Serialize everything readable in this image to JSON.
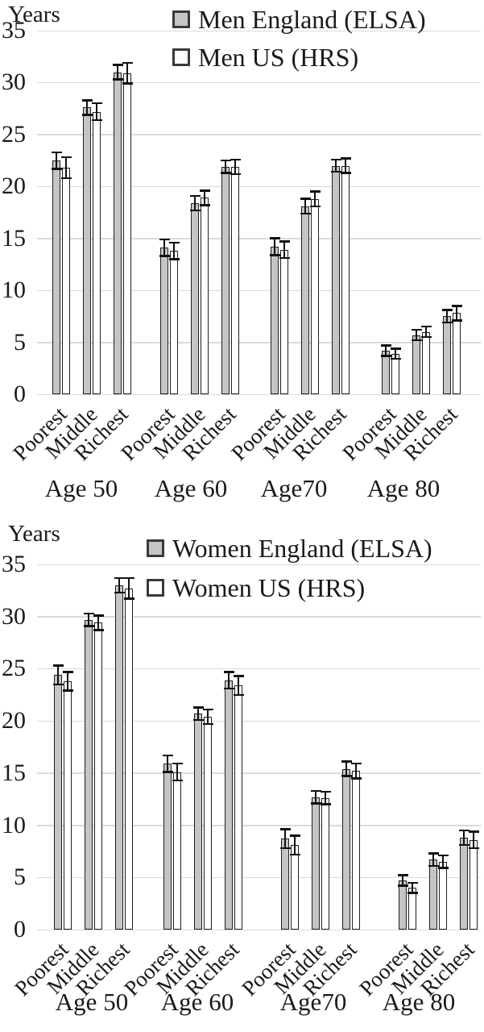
{
  "page": {
    "background": "#ffffff",
    "text_color": "#1a1a1a",
    "gridline_color": "#dadada",
    "bar_border_color": "#1f1f1f",
    "error_bar_color": "#111111"
  },
  "chart_data": [
    {
      "type": "bar",
      "title": "",
      "ylabel": "Years",
      "ylim": [
        0,
        35
      ],
      "yticks": [
        35,
        30,
        25,
        20,
        15,
        10,
        5,
        0
      ],
      "grid": true,
      "legend_position": "top-inside",
      "groups": [
        "Age 50",
        "Age 60",
        "Age70",
        "Age 80"
      ],
      "categories": [
        "Poorest",
        "Middle",
        "Richest"
      ],
      "error_bars": true,
      "series": [
        {
          "name": "Men England (ELSA)",
          "fill": "#c5c5c5",
          "values": [
            [
              22.5,
              27.6,
              31.0
            ],
            [
              14.1,
              18.4,
              21.9
            ],
            [
              14.2,
              18.1,
              22.0
            ],
            [
              4.2,
              5.7,
              7.5
            ]
          ],
          "errors": [
            [
              0.8,
              0.7,
              0.7
            ],
            [
              0.8,
              0.7,
              0.6
            ],
            [
              0.8,
              0.7,
              0.6
            ],
            [
              0.5,
              0.5,
              0.6
            ]
          ]
        },
        {
          "name": "Men US (HRS)",
          "fill": "#ffffff",
          "values": [
            [
              21.8,
              27.2,
              30.9
            ],
            [
              13.8,
              18.9,
              21.9
            ],
            [
              13.9,
              18.8,
              22.0
            ],
            [
              3.9,
              6.0,
              7.8
            ]
          ],
          "errors": [
            [
              1.0,
              0.8,
              1.0
            ],
            [
              0.8,
              0.7,
              0.7
            ],
            [
              0.8,
              0.7,
              0.7
            ],
            [
              0.5,
              0.5,
              0.7
            ]
          ]
        }
      ]
    },
    {
      "type": "bar",
      "title": "",
      "ylabel": "Years",
      "ylim": [
        0,
        35
      ],
      "yticks": [
        35,
        30,
        25,
        20,
        15,
        10,
        5,
        0
      ],
      "grid": true,
      "legend_position": "top-inside",
      "groups": [
        "Age 50",
        "Age 60",
        "Age70",
        "Age 80"
      ],
      "categories": [
        "Poorest",
        "Middle",
        "Richest"
      ],
      "error_bars": true,
      "series": [
        {
          "name": "Women England (ELSA)",
          "fill": "#c5c5c5",
          "values": [
            [
              24.4,
              29.7,
              33.0
            ],
            [
              15.9,
              20.7,
              23.9
            ],
            [
              8.7,
              12.7,
              15.4
            ],
            [
              4.7,
              6.7,
              8.8
            ]
          ],
          "errors": [
            [
              0.9,
              0.6,
              0.7
            ],
            [
              0.8,
              0.6,
              0.8
            ],
            [
              0.9,
              0.6,
              0.7
            ],
            [
              0.5,
              0.6,
              0.7
            ]
          ]
        },
        {
          "name": "Women US (HRS)",
          "fill": "#ffffff",
          "values": [
            [
              23.8,
              29.4,
              32.7
            ],
            [
              15.1,
              20.4,
              23.4
            ],
            [
              8.1,
              12.6,
              15.2
            ],
            [
              4.0,
              6.5,
              8.6
            ]
          ],
          "errors": [
            [
              0.9,
              0.7,
              1.0
            ],
            [
              0.8,
              0.7,
              0.9
            ],
            [
              0.9,
              0.6,
              0.7
            ],
            [
              0.5,
              0.6,
              0.8
            ]
          ]
        }
      ]
    }
  ]
}
